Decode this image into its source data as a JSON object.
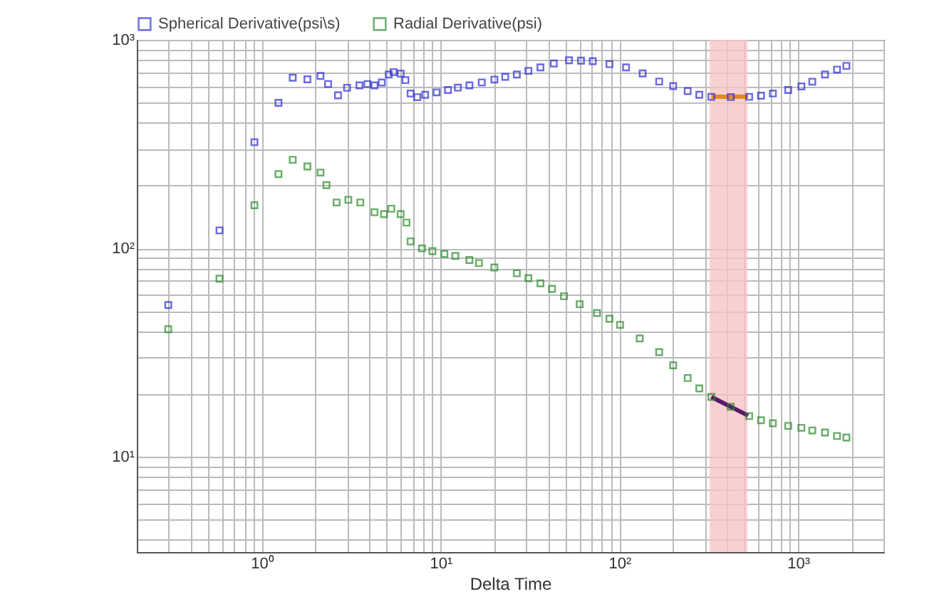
{
  "chart_data": {
    "type": "scatter",
    "xlabel": "Delta Time",
    "log": "xy",
    "grid": true,
    "legend": "top",
    "marker": "square",
    "xlim": [
      0.2,
      3000
    ],
    "ylim": [
      3.5,
      1000
    ],
    "xticks": [
      {
        "value": 1,
        "label": "10⁰"
      },
      {
        "value": 10,
        "label": "10¹"
      },
      {
        "value": 100,
        "label": "10²"
      },
      {
        "value": 1000,
        "label": "10³"
      }
    ],
    "yticks": [
      {
        "value": 10,
        "label": "10¹"
      },
      {
        "value": 100,
        "label": "10²"
      },
      {
        "value": 1000,
        "label": "10³"
      }
    ],
    "bands": [
      {
        "axis": "x",
        "from": 320,
        "to": 520,
        "color": "#f6c4c6"
      }
    ],
    "series": [
      {
        "name": "Spherical Derivative(psi\\s)",
        "color": "#2b2bd8",
        "x": [
          0.3,
          0.58,
          0.91,
          1.24,
          1.49,
          1.8,
          2.13,
          2.35,
          2.67,
          3.0,
          3.52,
          3.9,
          4.27,
          4.69,
          5.13,
          5.46,
          5.98,
          6.36,
          6.8,
          7.41,
          8.2,
          9.5,
          11,
          12.5,
          14.5,
          17,
          20,
          23,
          26.7,
          31,
          36.2,
          43,
          52.3,
          61,
          71,
          88,
          109,
          135,
          167,
          200,
          241,
          280,
          327,
          420,
          532,
          620,
          722,
          880,
          1043,
          1200,
          1413,
          1650,
          1862
        ],
        "values": [
          53.5,
          122,
          323,
          499,
          658,
          647,
          671,
          614,
          542,
          589,
          605,
          614,
          605,
          624,
          682,
          700,
          689,
          641,
          553,
          531,
          545,
          560,
          575,
          590,
          605,
          625,
          645,
          665,
          682,
          710,
          738,
          770,
          798,
          795,
          790,
          765,
          738,
          690,
          631,
          600,
          568,
          545,
          533,
          532,
          533,
          540,
          553,
          575,
          598,
          630,
          682,
          720,
          750
        ]
      },
      {
        "name": "Radial Derivative(psi)",
        "color": "#2a8a2a",
        "x": [
          0.3,
          0.58,
          0.91,
          1.24,
          1.49,
          1.8,
          2.13,
          2.3,
          2.62,
          3.05,
          3.56,
          4.27,
          4.83,
          5.3,
          5.98,
          6.45,
          6.8,
          7.87,
          9,
          10.5,
          12.1,
          14.5,
          16.4,
          20,
          26.7,
          31,
          36.2,
          42,
          49,
          60,
          75,
          88,
          101,
          130,
          167,
          200,
          241,
          280,
          327,
          420,
          532,
          620,
          722,
          880,
          1043,
          1200,
          1413,
          1650,
          1862
        ],
        "values": [
          41,
          71.6,
          161,
          227,
          266,
          247,
          231,
          201,
          166,
          171,
          166,
          149,
          146,
          155,
          146,
          133,
          108,
          100,
          97,
          94,
          92,
          88,
          85,
          81,
          76,
          72,
          68,
          64,
          59,
          54,
          49,
          46,
          43,
          37,
          31.8,
          27.5,
          23.9,
          21.3,
          19.4,
          17.4,
          15.7,
          15,
          14.5,
          14.1,
          13.8,
          13.4,
          13.1,
          12.6,
          12.4
        ]
      },
      {
        "type": "line",
        "marker": "none",
        "color": "#e08a1e",
        "x": [
          327,
          420,
          525
        ],
        "values": [
          535,
          533,
          535
        ]
      },
      {
        "type": "line",
        "marker": "none",
        "color": "#5a1a6a",
        "x": [
          327,
          420,
          525
        ],
        "values": [
          19.4,
          17.4,
          15.8
        ]
      }
    ]
  }
}
